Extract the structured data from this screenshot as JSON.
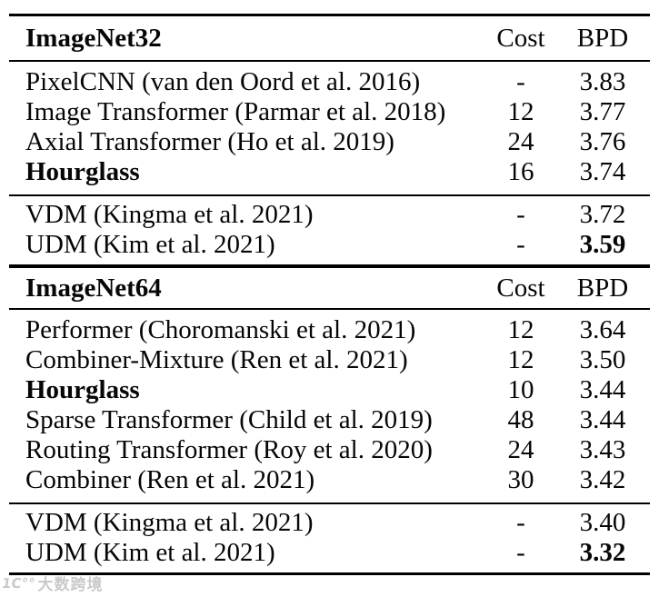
{
  "table": {
    "sections": [
      {
        "title": "ImageNet32",
        "cost_label": "Cost",
        "bpd_label": "BPD",
        "groups": [
          {
            "rows": [
              {
                "name": "PixelCNN (van den Oord et al. 2016)",
                "cost": "-",
                "bpd": "3.83"
              },
              {
                "name": "Image Transformer (Parmar et al. 2018)",
                "cost": "12",
                "bpd": "3.77"
              },
              {
                "name": "Axial Transformer (Ho et al. 2019)",
                "cost": "24",
                "bpd": "3.76"
              },
              {
                "name": "Hourglass",
                "cost": "16",
                "bpd": "3.74"
              }
            ]
          },
          {
            "rows": [
              {
                "name": "VDM (Kingma et al. 2021)",
                "cost": "-",
                "bpd": "3.72"
              },
              {
                "name": "UDM (Kim et al. 2021)",
                "cost": "-",
                "bpd": "3.59"
              }
            ]
          }
        ]
      },
      {
        "title": "ImageNet64",
        "cost_label": "Cost",
        "bpd_label": "BPD",
        "groups": [
          {
            "rows": [
              {
                "name": "Performer (Choromanski et al. 2021)",
                "cost": "12",
                "bpd": "3.64"
              },
              {
                "name": "Combiner-Mixture (Ren et al. 2021)",
                "cost": "12",
                "bpd": "3.50"
              },
              {
                "name": "Hourglass",
                "cost": "10",
                "bpd": "3.44"
              },
              {
                "name": "Sparse Transformer (Child et al. 2019)",
                "cost": "48",
                "bpd": "3.44"
              },
              {
                "name": "Routing Transformer (Roy et al. 2020)",
                "cost": "24",
                "bpd": "3.43"
              },
              {
                "name": "Combiner (Ren et al. 2021)",
                "cost": "30",
                "bpd": "3.42"
              }
            ]
          },
          {
            "rows": [
              {
                "name": "VDM (Kingma et al. 2021)",
                "cost": "-",
                "bpd": "3.40"
              },
              {
                "name": "UDM (Kim et al. 2021)",
                "cost": "-",
                "bpd": "3.32"
              }
            ]
          }
        ]
      }
    ]
  },
  "colors": {
    "text": "#060606",
    "rule": "#000000",
    "background": "#ffffff",
    "watermark": "#c9c9c9"
  },
  "watermark": {
    "logo": "1C°°",
    "text": "大数跨境"
  }
}
